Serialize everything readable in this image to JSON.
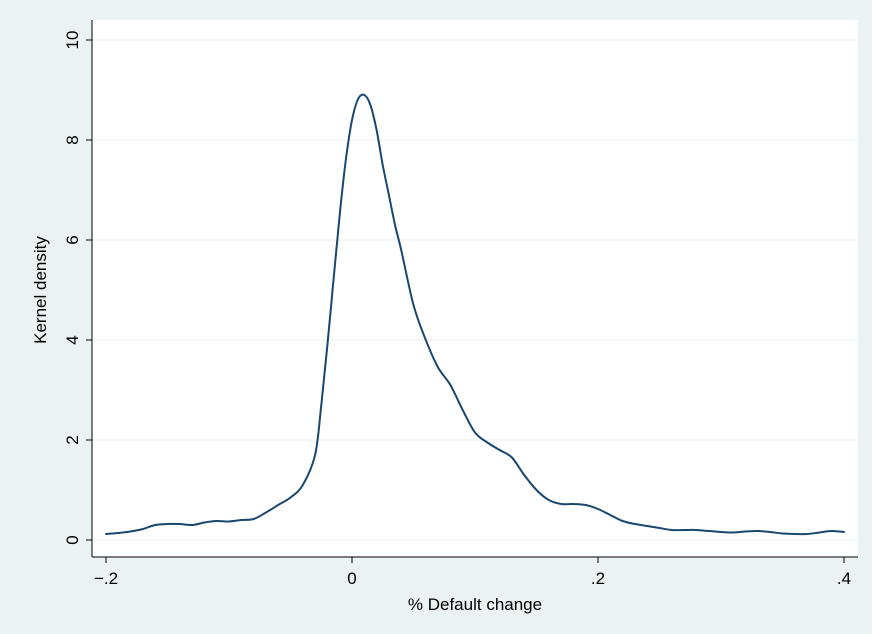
{
  "chart_data": {
    "type": "line",
    "title": "",
    "xlabel": "% Default change",
    "ylabel": "Kernel density",
    "xlim": [
      -0.2,
      0.4
    ],
    "ylim": [
      0,
      10
    ],
    "xticks": [
      -0.2,
      0,
      0.2,
      0.4
    ],
    "xtick_labels": [
      "−.2",
      "0",
      ".2",
      ".4"
    ],
    "yticks": [
      0,
      2,
      4,
      6,
      8,
      10
    ],
    "ytick_labels": [
      "0",
      "2",
      "4",
      "6",
      "8",
      "10"
    ],
    "grid": "horizontal",
    "legend": "none",
    "colors": {
      "outer_background": "#eaf2f3",
      "plot_background": "#ffffff",
      "line": "#1a476f",
      "grid": "#eaf2f3"
    },
    "series": [
      {
        "x": [
          -0.2,
          -0.19,
          -0.18,
          -0.17,
          -0.16,
          -0.15,
          -0.14,
          -0.13,
          -0.12,
          -0.11,
          -0.1,
          -0.09,
          -0.08,
          -0.07,
          -0.06,
          -0.05,
          -0.04,
          -0.03,
          -0.025,
          -0.02,
          -0.015,
          -0.01,
          -0.005,
          0,
          0.005,
          0.01,
          0.015,
          0.02,
          0.025,
          0.03,
          0.035,
          0.04,
          0.05,
          0.06,
          0.07,
          0.08,
          0.09,
          0.1,
          0.11,
          0.12,
          0.13,
          0.14,
          0.15,
          0.16,
          0.17,
          0.18,
          0.19,
          0.2,
          0.21,
          0.22,
          0.23,
          0.24,
          0.25,
          0.26,
          0.27,
          0.28,
          0.29,
          0.3,
          0.31,
          0.32,
          0.33,
          0.34,
          0.35,
          0.36,
          0.37,
          0.38,
          0.39,
          0.4
        ],
        "y": [
          0.12,
          0.14,
          0.17,
          0.22,
          0.3,
          0.32,
          0.32,
          0.3,
          0.35,
          0.38,
          0.37,
          0.4,
          0.42,
          0.55,
          0.7,
          0.85,
          1.1,
          1.7,
          2.7,
          3.9,
          5.2,
          6.5,
          7.6,
          8.4,
          8.82,
          8.9,
          8.7,
          8.2,
          7.5,
          6.9,
          6.3,
          5.8,
          4.7,
          4.0,
          3.45,
          3.1,
          2.6,
          2.15,
          1.95,
          1.8,
          1.65,
          1.3,
          1.0,
          0.8,
          0.72,
          0.72,
          0.7,
          0.62,
          0.5,
          0.38,
          0.32,
          0.28,
          0.24,
          0.2,
          0.2,
          0.2,
          0.18,
          0.16,
          0.15,
          0.17,
          0.18,
          0.16,
          0.13,
          0.12,
          0.12,
          0.15,
          0.18,
          0.16
        ]
      }
    ]
  }
}
